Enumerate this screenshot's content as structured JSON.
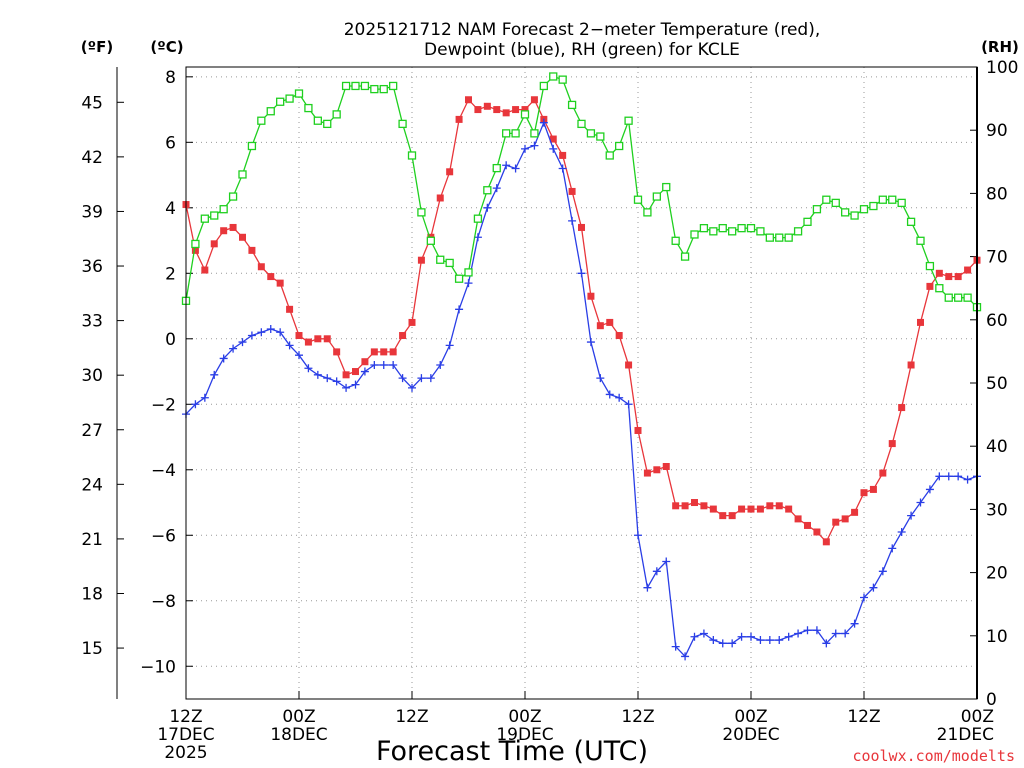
{
  "chart_data": {
    "type": "line",
    "title_line1": "2025121712 NAM Forecast 2−meter Temperature (red),",
    "title_line2": "Dewpoint (blue), RH (green) for KCLE",
    "xlabel": "Forecast Time (UTC)",
    "credit": "coolwx.com/modelts",
    "unit_f": "(ºF)",
    "unit_c": "(ºC)",
    "unit_rh": "(RH)",
    "x_range_hours": [
      0,
      84
    ],
    "c_range": [
      -11,
      8.3
    ],
    "rh_range": [
      0,
      100
    ],
    "c_ticks": [
      "−10",
      "−8",
      "−6",
      "−4",
      "−2",
      "0",
      "2",
      "4",
      "6",
      "8"
    ],
    "c_tick_values": [
      -10,
      -8,
      -6,
      -4,
      -2,
      0,
      2,
      4,
      6,
      8
    ],
    "f_ticks": [
      "15",
      "18",
      "21",
      "24",
      "27",
      "30",
      "33",
      "36",
      "39",
      "42",
      "45"
    ],
    "f_tick_values": [
      15,
      18,
      21,
      24,
      27,
      30,
      33,
      36,
      39,
      42,
      45
    ],
    "rh_ticks": [
      "0",
      "10",
      "20",
      "30",
      "40",
      "50",
      "60",
      "70",
      "80",
      "90",
      "100"
    ],
    "rh_tick_values": [
      0,
      10,
      20,
      30,
      40,
      50,
      60,
      70,
      80,
      90,
      100
    ],
    "x_ticks": [
      {
        "hour": 0,
        "l1": "12Z",
        "l2": "17DEC",
        "l3": "2025"
      },
      {
        "hour": 12,
        "l1": "00Z",
        "l2": "18DEC",
        "l3": ""
      },
      {
        "hour": 24,
        "l1": "12Z",
        "l2": "",
        "l3": ""
      },
      {
        "hour": 36,
        "l1": "00Z",
        "l2": "19DEC",
        "l3": ""
      },
      {
        "hour": 48,
        "l1": "12Z",
        "l2": "",
        "l3": ""
      },
      {
        "hour": 60,
        "l1": "00Z",
        "l2": "20DEC",
        "l3": ""
      },
      {
        "hour": 72,
        "l1": "12Z",
        "l2": "",
        "l3": ""
      },
      {
        "hour": 84,
        "l1": "00Z",
        "l2": "21DEC",
        "l3": ""
      }
    ],
    "hours": [
      0,
      1,
      2,
      3,
      4,
      5,
      6,
      7,
      8,
      9,
      10,
      11,
      12,
      13,
      14,
      15,
      16,
      17,
      18,
      19,
      20,
      21,
      22,
      23,
      24,
      25,
      26,
      27,
      28,
      29,
      30,
      31,
      32,
      33,
      34,
      35,
      36,
      37,
      38,
      39,
      40,
      41,
      42,
      43,
      44,
      45,
      46,
      47,
      48,
      49,
      50,
      51,
      52,
      53,
      54,
      55,
      56,
      57,
      58,
      59,
      60,
      61,
      62,
      63,
      64,
      65,
      66,
      67,
      68,
      69,
      70,
      71,
      72,
      73,
      74,
      75,
      76,
      77,
      78,
      79,
      80,
      81,
      82,
      83,
      84
    ],
    "series": [
      {
        "name": "2-meter Temperature",
        "units": "C",
        "color": "#e8363b",
        "marker": "filled-square",
        "values": [
          4.1,
          2.7,
          2.1,
          2.9,
          3.3,
          3.4,
          3.1,
          2.7,
          2.2,
          1.9,
          1.7,
          0.9,
          0.1,
          -0.1,
          0.0,
          0.0,
          -0.4,
          -1.1,
          -1.0,
          -0.7,
          -0.4,
          -0.4,
          -0.4,
          0.1,
          0.5,
          2.4,
          3.1,
          4.3,
          5.1,
          6.7,
          7.3,
          7.0,
          7.1,
          7.0,
          6.9,
          7.0,
          7.0,
          7.3,
          6.7,
          6.1,
          5.6,
          4.5,
          3.4,
          1.3,
          0.4,
          0.5,
          0.1,
          -0.8,
          -2.8,
          -4.1,
          -4.0,
          -3.9,
          -5.1,
          -5.1,
          -5.0,
          -5.1,
          -5.2,
          -5.4,
          -5.4,
          -5.2,
          -5.2,
          -5.2,
          -5.1,
          -5.1,
          -5.2,
          -5.5,
          -5.7,
          -5.9,
          -6.2,
          -5.6,
          -5.5,
          -5.3,
          -4.7,
          -4.6,
          -4.1,
          -3.2,
          -2.1,
          -0.8,
          0.5,
          1.6,
          2.0,
          1.9,
          1.9,
          2.1,
          2.4
        ]
      },
      {
        "name": "Dewpoint",
        "units": "C",
        "color": "#2a3ee6",
        "marker": "plus",
        "values": [
          -2.3,
          -2.0,
          -1.8,
          -1.1,
          -0.6,
          -0.3,
          -0.1,
          0.1,
          0.2,
          0.3,
          0.2,
          -0.2,
          -0.5,
          -0.9,
          -1.1,
          -1.2,
          -1.3,
          -1.5,
          -1.4,
          -1.0,
          -0.8,
          -0.8,
          -0.8,
          -1.2,
          -1.5,
          -1.2,
          -1.2,
          -0.8,
          -0.2,
          0.9,
          1.7,
          3.1,
          4.0,
          4.6,
          5.3,
          5.2,
          5.8,
          5.9,
          6.6,
          5.8,
          5.2,
          3.6,
          2.0,
          -0.1,
          -1.2,
          -1.7,
          -1.8,
          -2.0,
          -6.0,
          -7.6,
          -7.1,
          -6.8,
          -9.4,
          -9.7,
          -9.1,
          -9.0,
          -9.2,
          -9.3,
          -9.3,
          -9.1,
          -9.1,
          -9.2,
          -9.2,
          -9.2,
          -9.1,
          -9.0,
          -8.9,
          -8.9,
          -9.3,
          -9.0,
          -9.0,
          -8.7,
          -7.9,
          -7.6,
          -7.1,
          -6.4,
          -5.9,
          -5.4,
          -5.0,
          -4.6,
          -4.2,
          -4.2,
          -4.2,
          -4.3,
          -4.2
        ]
      },
      {
        "name": "RH",
        "units": "%",
        "color": "#1fd01f",
        "marker": "open-square",
        "values": [
          63,
          72,
          76,
          76.5,
          77.5,
          79.5,
          83,
          87.5,
          91.5,
          93,
          94.5,
          95,
          95.8,
          93.5,
          91.5,
          91,
          92.5,
          97,
          97,
          97,
          96.5,
          96.5,
          97,
          91,
          86,
          77,
          72.5,
          69.5,
          69,
          66.5,
          67.5,
          76,
          80.5,
          84,
          89.5,
          89.5,
          92.5,
          89.5,
          97,
          98.5,
          98,
          94,
          91,
          89.5,
          89,
          86,
          87.5,
          91.5,
          79,
          77,
          79.5,
          81,
          72.5,
          70,
          73.5,
          74.5,
          74,
          74.5,
          74,
          74.5,
          74.5,
          74,
          73,
          73,
          73,
          74,
          75.5,
          77.5,
          79,
          78.5,
          77,
          76.5,
          77.5,
          78,
          79,
          79,
          78.5,
          75.5,
          72.5,
          68.5,
          65,
          63.5,
          63.5,
          63.5,
          62
        ]
      }
    ]
  }
}
